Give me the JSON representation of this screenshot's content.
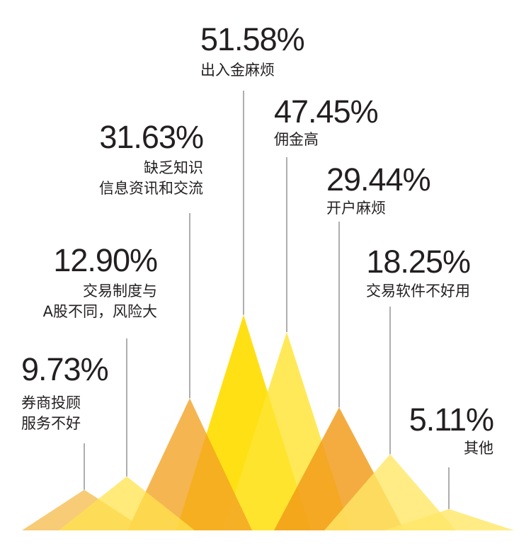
{
  "chart_data": {
    "type": "area",
    "title": "",
    "xlabel": "",
    "ylabel": "",
    "ylim": [
      0,
      55
    ],
    "series": [
      {
        "value": 9.73,
        "value_label": "9.73%",
        "label_lines": [
          "券商投顾",
          "服务不好"
        ],
        "color": "#F5B94A",
        "opacity": 0.75
      },
      {
        "value": 12.9,
        "value_label": "12.90%",
        "label_lines": [
          "交易制度与",
          "A股不同，风险大"
        ],
        "color": "#FFE34D",
        "opacity": 0.75
      },
      {
        "value": 31.63,
        "value_label": "31.63%",
        "label_lines": [
          "缺乏知识",
          "信息资讯和交流"
        ],
        "color": "#F2A324",
        "opacity": 0.8
      },
      {
        "value": 51.58,
        "value_label": "51.58%",
        "label_lines": [
          "出入金麻烦"
        ],
        "color": "#FFDD00",
        "opacity": 0.92
      },
      {
        "value": 47.45,
        "value_label": "47.45%",
        "label_lines": [
          "佣金高"
        ],
        "color": "#FFE433",
        "opacity": 0.82
      },
      {
        "value": 29.44,
        "value_label": "29.44%",
        "label_lines": [
          "开户麻烦"
        ],
        "color": "#F29A17",
        "opacity": 0.82
      },
      {
        "value": 18.25,
        "value_label": "18.25%",
        "label_lines": [
          "交易软件不好用"
        ],
        "color": "#FFE766",
        "opacity": 0.8
      },
      {
        "value": 5.11,
        "value_label": "5.11%",
        "label_lines": [
          "其他"
        ],
        "color": "#FFE766",
        "opacity": 0.8
      }
    ]
  }
}
